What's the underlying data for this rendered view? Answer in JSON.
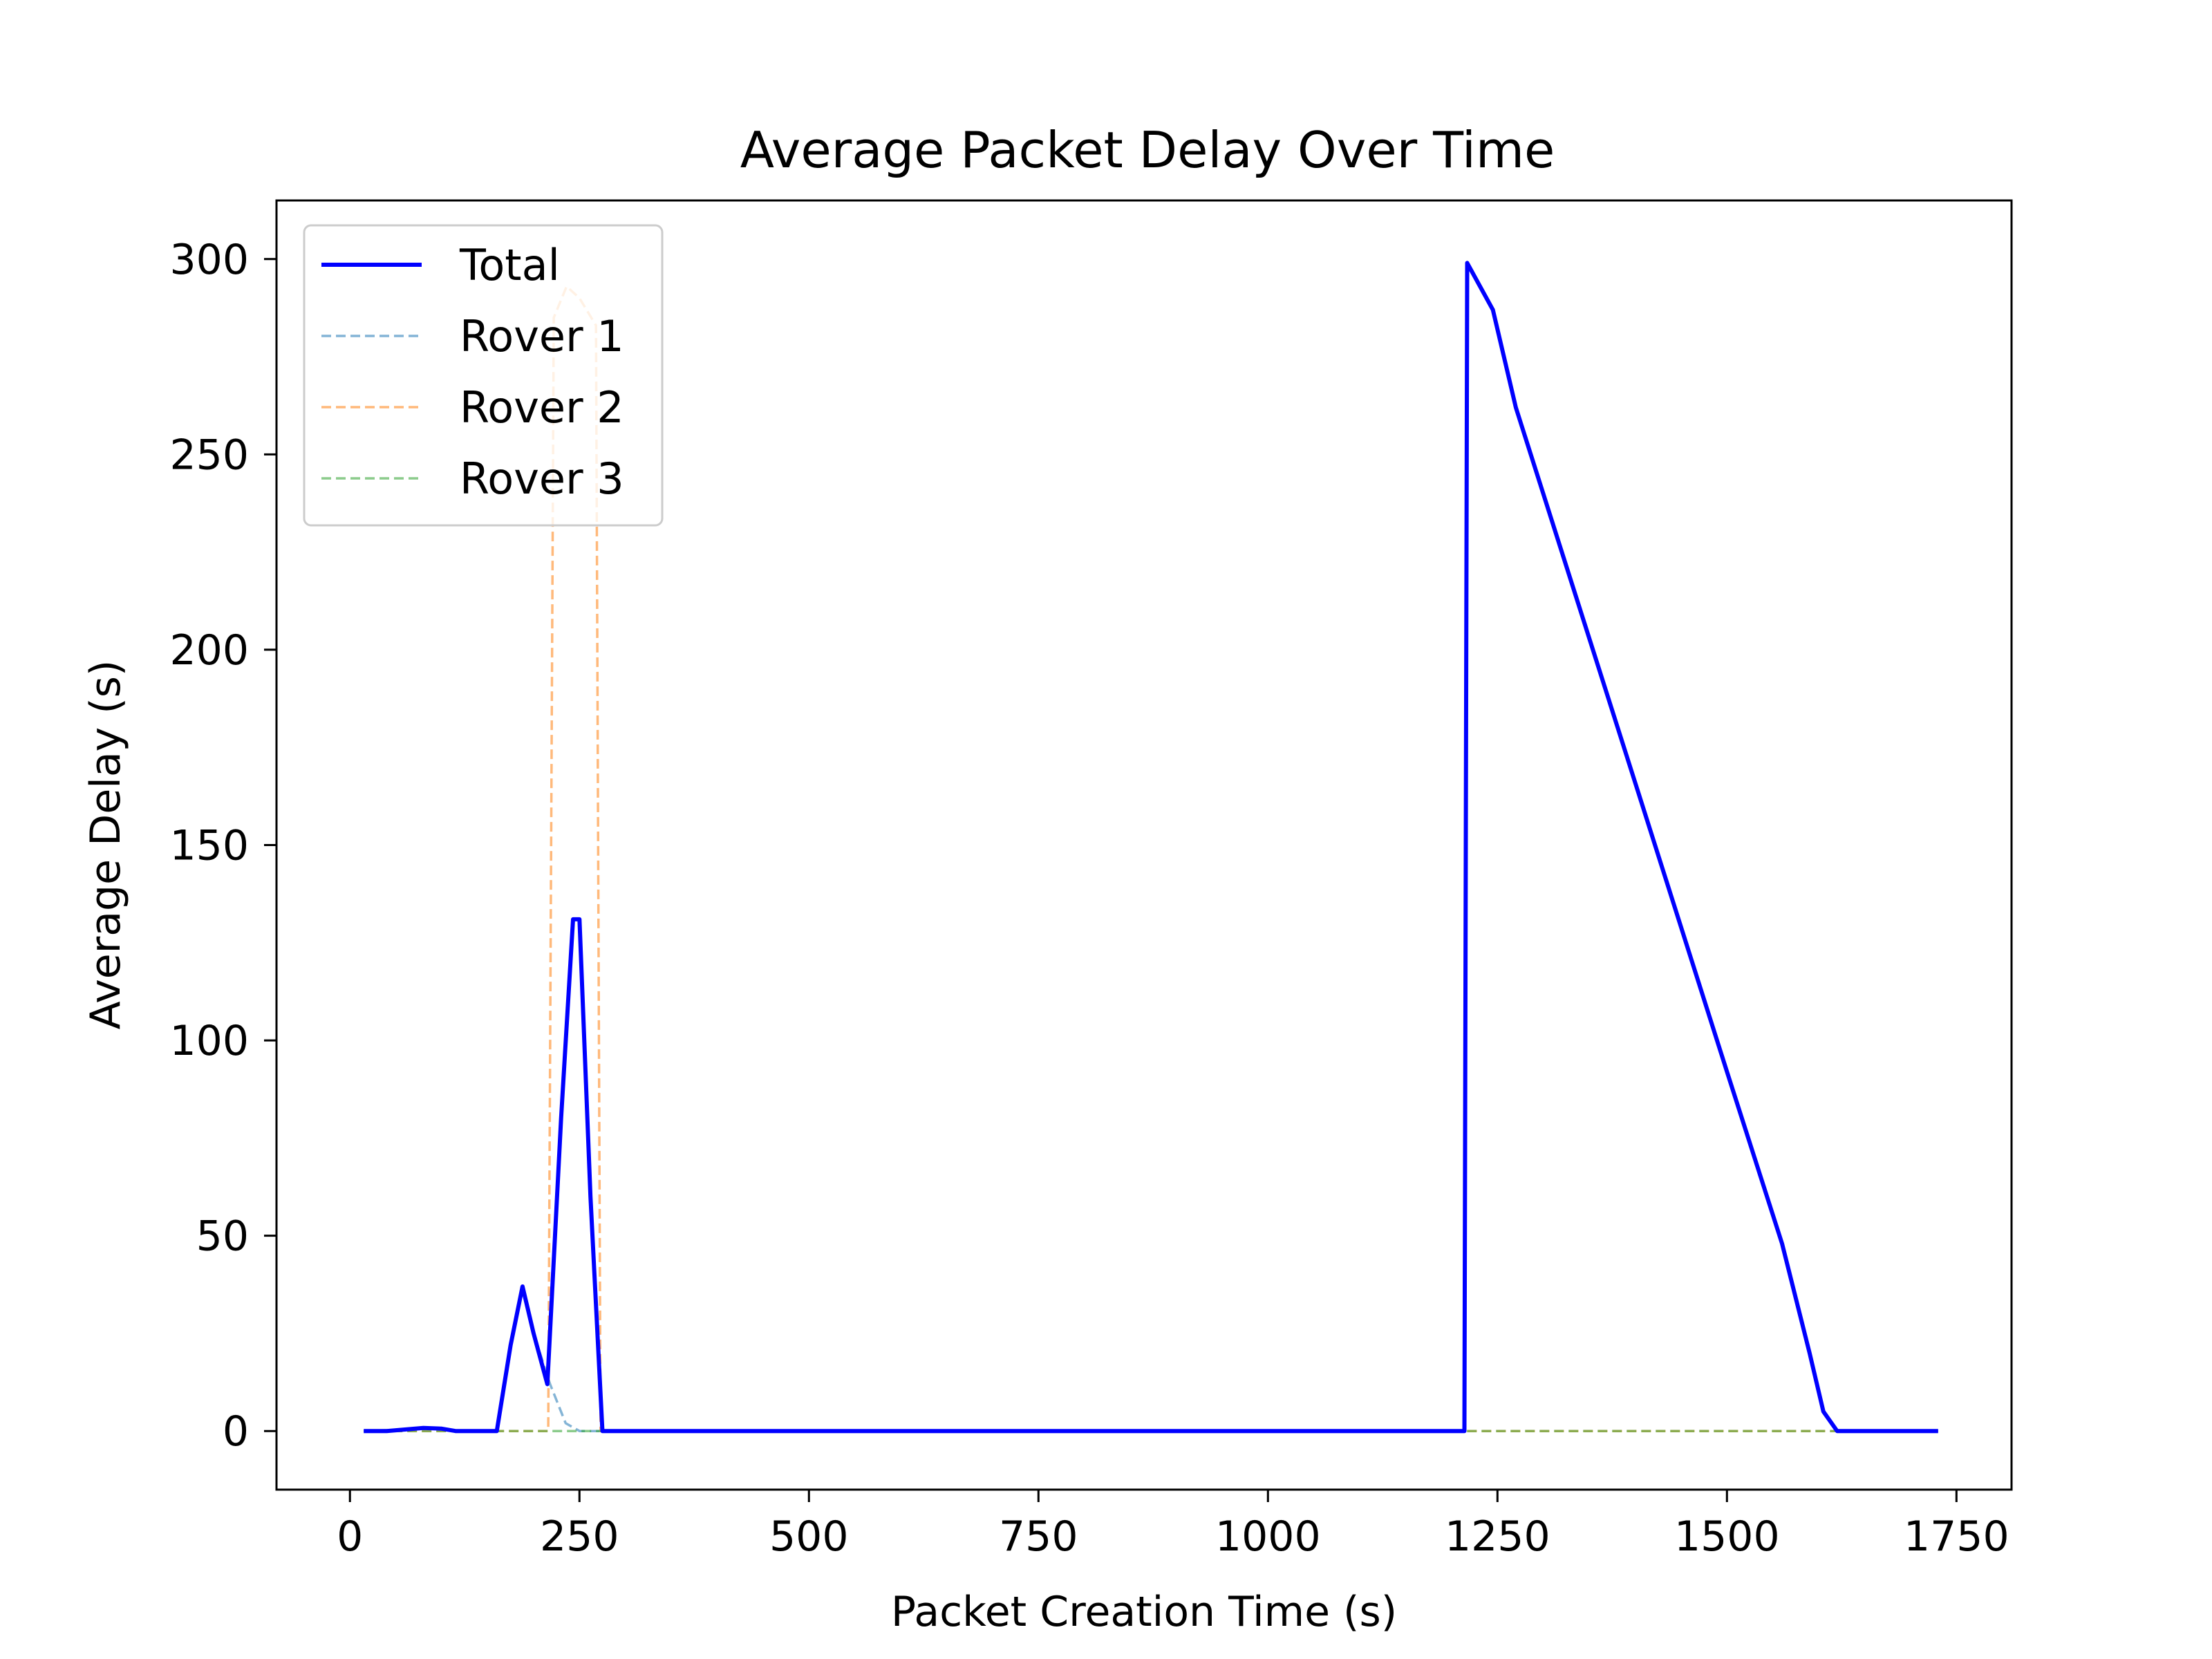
{
  "chart_data": {
    "type": "line",
    "title": "Average Packet Delay Over Time",
    "xlabel": "Packet Creation Time (s)",
    "ylabel": "Average Delay (s)",
    "xlim": [
      -80,
      1810
    ],
    "ylim": [
      -15,
      315
    ],
    "xticks": [
      0,
      250,
      500,
      750,
      1000,
      1250,
      1500,
      1750
    ],
    "yticks": [
      0,
      50,
      100,
      150,
      200,
      250,
      300
    ],
    "grid": false,
    "legend_position": "top-left",
    "series": [
      {
        "name": "Total",
        "color": "#0000ff",
        "style": "solid",
        "points": [
          [
            15,
            0
          ],
          [
            40,
            0
          ],
          [
            60,
            0.4
          ],
          [
            80,
            0.8
          ],
          [
            100,
            0.6
          ],
          [
            115,
            0
          ],
          [
            160,
            0
          ],
          [
            175,
            22
          ],
          [
            188,
            37
          ],
          [
            200,
            25
          ],
          [
            215,
            12
          ],
          [
            230,
            80
          ],
          [
            243,
            131
          ],
          [
            250,
            131
          ],
          [
            262,
            60
          ],
          [
            275,
            0
          ],
          [
            300,
            0
          ],
          [
            600,
            0
          ],
          [
            900,
            0
          ],
          [
            1214,
            0
          ],
          [
            1217,
            299
          ],
          [
            1245,
            287
          ],
          [
            1270,
            262
          ],
          [
            1400,
            166
          ],
          [
            1500,
            92
          ],
          [
            1560,
            48
          ],
          [
            1590,
            20
          ],
          [
            1605,
            5
          ],
          [
            1620,
            0
          ],
          [
            1730,
            0
          ]
        ]
      },
      {
        "name": "Rover 1",
        "color": "#1f77b4",
        "style": "dashed",
        "points": [
          [
            15,
            0
          ],
          [
            60,
            0.4
          ],
          [
            80,
            0.8
          ],
          [
            100,
            0.6
          ],
          [
            115,
            0
          ],
          [
            160,
            0
          ],
          [
            175,
            22
          ],
          [
            188,
            37
          ],
          [
            200,
            25
          ],
          [
            218,
            12
          ],
          [
            235,
            2
          ],
          [
            250,
            0
          ],
          [
            1214,
            0
          ],
          [
            1217,
            299
          ],
          [
            1245,
            287
          ],
          [
            1270,
            262
          ],
          [
            1400,
            166
          ],
          [
            1500,
            92
          ],
          [
            1560,
            48
          ],
          [
            1590,
            20
          ],
          [
            1605,
            5
          ],
          [
            1620,
            0
          ],
          [
            1730,
            0
          ]
        ]
      },
      {
        "name": "Rover 2",
        "color": "#ff7f0e",
        "style": "dashed",
        "points": [
          [
            15,
            0
          ],
          [
            216,
            0
          ],
          [
            222,
            285
          ],
          [
            236,
            293
          ],
          [
            250,
            290
          ],
          [
            268,
            283
          ],
          [
            273,
            0
          ],
          [
            1730,
            0
          ]
        ]
      },
      {
        "name": "Rover 3",
        "color": "#2ca02c",
        "style": "dashed",
        "points": [
          [
            15,
            0
          ],
          [
            1730,
            0
          ]
        ]
      }
    ]
  }
}
